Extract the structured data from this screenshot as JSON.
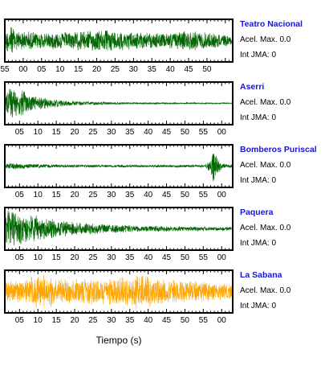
{
  "chart_data": {
    "type": "line",
    "xlabel": "Tiempo (s)",
    "ylabel": "",
    "grid": false,
    "panels": [
      {
        "name": "Teatro Nacional",
        "accel_label": "Acel. Max. 0.0",
        "int_label": "Int JMA: 0",
        "color": "#006400",
        "tick_labels": [
          "55",
          "00",
          "05",
          "10",
          "15",
          "20",
          "25",
          "30",
          "35",
          "40",
          "45",
          "50"
        ],
        "show_tick_labels": true,
        "first_tick_offset_s": 0,
        "envelope": [
          [
            0,
            0.35
          ],
          [
            0.02,
            0.95
          ],
          [
            0.05,
            0.55
          ],
          [
            0.1,
            0.5
          ],
          [
            0.2,
            0.45
          ],
          [
            0.3,
            0.5
          ],
          [
            0.45,
            0.6
          ],
          [
            0.5,
            0.55
          ],
          [
            0.6,
            0.45
          ],
          [
            0.7,
            0.4
          ],
          [
            0.8,
            0.55
          ],
          [
            0.85,
            0.5
          ],
          [
            0.95,
            0.35
          ],
          [
            1,
            0.25
          ]
        ]
      },
      {
        "name": "Aserri",
        "accel_label": "Acel. Max. 0.0",
        "int_label": "Int JMA: 0",
        "color": "#006400",
        "tick_labels": [
          "05",
          "10",
          "15",
          "20",
          "25",
          "30",
          "35",
          "40",
          "45",
          "50",
          "55",
          "00"
        ],
        "show_tick_labels": true,
        "first_tick_offset_s": 4,
        "envelope": [
          [
            0,
            0.45
          ],
          [
            0.02,
            0.95
          ],
          [
            0.06,
            0.8
          ],
          [
            0.12,
            0.45
          ],
          [
            0.2,
            0.25
          ],
          [
            0.3,
            0.12
          ],
          [
            0.5,
            0.06
          ],
          [
            0.8,
            0.04
          ],
          [
            1,
            0.03
          ]
        ]
      },
      {
        "name": "Bomberos Puriscal",
        "accel_label": "Acel. Max. 0.0",
        "int_label": "Int JMA: 0",
        "color": "#006400",
        "tick_labels": [
          "05",
          "10",
          "15",
          "20",
          "25",
          "30",
          "35",
          "40",
          "45",
          "50",
          "55",
          "00"
        ],
        "show_tick_labels": true,
        "first_tick_offset_s": 4,
        "envelope": [
          [
            0,
            0.12
          ],
          [
            0.03,
            0.2
          ],
          [
            0.1,
            0.12
          ],
          [
            0.3,
            0.08
          ],
          [
            0.6,
            0.07
          ],
          [
            0.88,
            0.07
          ],
          [
            0.9,
            0.4
          ],
          [
            0.915,
            1.0
          ],
          [
            0.93,
            0.5
          ],
          [
            0.95,
            0.15
          ],
          [
            1,
            0.08
          ]
        ]
      },
      {
        "name": "Paquera",
        "accel_label": "Acel. Max. 0.0",
        "int_label": "Int JMA: 0",
        "color": "#006400",
        "tick_labels": [
          "05",
          "10",
          "15",
          "20",
          "25",
          "30",
          "35",
          "40",
          "45",
          "50",
          "55",
          "00"
        ],
        "show_tick_labels": true,
        "first_tick_offset_s": 4,
        "envelope": [
          [
            0,
            0.8
          ],
          [
            0.02,
            1.0
          ],
          [
            0.08,
            0.85
          ],
          [
            0.15,
            0.65
          ],
          [
            0.25,
            0.45
          ],
          [
            0.35,
            0.3
          ],
          [
            0.5,
            0.22
          ],
          [
            0.7,
            0.15
          ],
          [
            0.85,
            0.12
          ],
          [
            1,
            0.1
          ]
        ]
      },
      {
        "name": "La Sabana",
        "accel_label": "Acel. Max. 0.0",
        "int_label": "Int JMA: 0",
        "color": "#ffa500",
        "tick_labels": [
          "05",
          "10",
          "15",
          "20",
          "25",
          "30",
          "35",
          "40",
          "45",
          "50",
          "55",
          "00"
        ],
        "show_tick_labels": true,
        "first_tick_offset_s": 4,
        "envelope": [
          [
            0,
            0.55
          ],
          [
            0.1,
            0.7
          ],
          [
            0.15,
            1.0
          ],
          [
            0.25,
            0.7
          ],
          [
            0.35,
            0.65
          ],
          [
            0.45,
            0.7
          ],
          [
            0.6,
            0.9
          ],
          [
            0.7,
            0.7
          ],
          [
            0.8,
            0.6
          ],
          [
            0.9,
            0.5
          ],
          [
            1,
            0.4
          ]
        ]
      }
    ]
  }
}
